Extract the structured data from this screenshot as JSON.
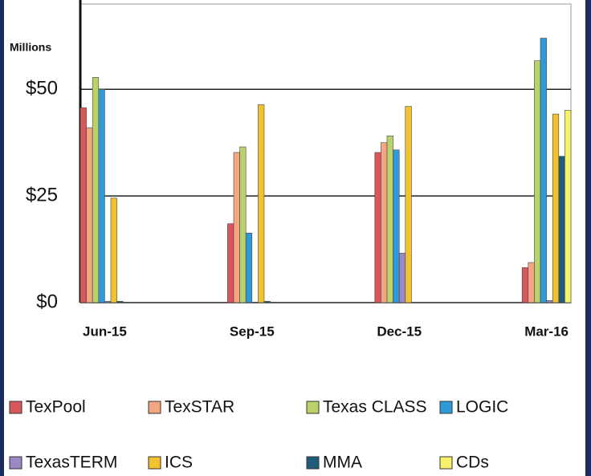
{
  "chart_data": {
    "type": "bar",
    "y_unit_label": "Millions",
    "categories": [
      "Jun-15",
      "Sep-15",
      "Dec-15",
      "Mar-16"
    ],
    "series": [
      {
        "name": "TexPool",
        "color": "#d9575a",
        "values": [
          45.7,
          18.5,
          35.2,
          8.2
        ]
      },
      {
        "name": "TexSTAR",
        "color": "#f4a582",
        "values": [
          41,
          35.2,
          37.5,
          9.4
        ]
      },
      {
        "name": "Texas CLASS",
        "color": "#b9d36a",
        "values": [
          52.8,
          36.5,
          39.1,
          56.7
        ]
      },
      {
        "name": "LOGIC",
        "color": "#2f9ad8",
        "values": [
          50,
          16.3,
          35.8,
          62
        ]
      },
      {
        "name": "TexasTERM",
        "color": "#9b87c4",
        "values": [
          0.3,
          0,
          11.6,
          0.5
        ]
      },
      {
        "name": "ICS",
        "color": "#f2c12e",
        "values": [
          24.5,
          46.4,
          46,
          44.2
        ]
      },
      {
        "name": "MMA",
        "color": "#1f5c7a",
        "values": [
          0.3,
          0.3,
          0,
          34.3
        ]
      },
      {
        "name": "CDs",
        "color": "#f7f06a",
        "values": [
          0,
          0,
          0,
          45.1
        ]
      }
    ],
    "ylim": [
      0,
      70
    ],
    "yticks": [
      {
        "value": 0,
        "label": "$0"
      },
      {
        "value": 25,
        "label": "$25"
      },
      {
        "value": 50,
        "label": "$50"
      }
    ],
    "grid": true
  }
}
